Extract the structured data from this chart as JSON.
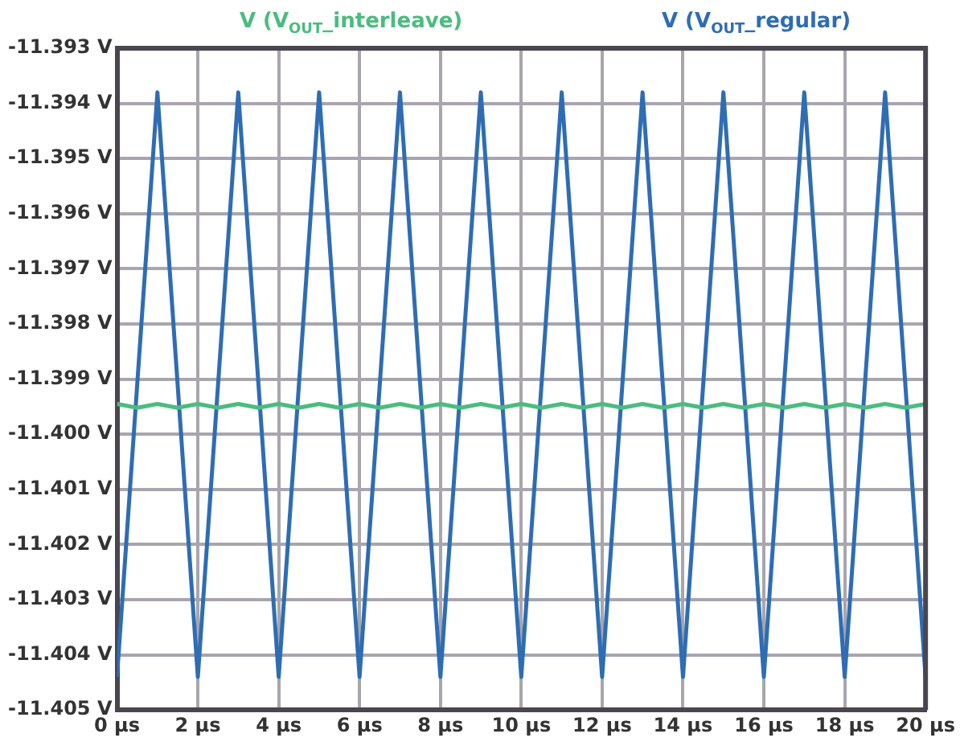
{
  "chart_data": {
    "type": "line",
    "legend": "top",
    "grid": true,
    "marker": "none",
    "line_style": "solid",
    "xlim": [
      0,
      20
    ],
    "xticks": [
      {
        "value": 0,
        "label": "0 µs"
      },
      {
        "value": 2,
        "label": "2 µs"
      },
      {
        "value": 4,
        "label": "4 µs"
      },
      {
        "value": 6,
        "label": "6 µs"
      },
      {
        "value": 8,
        "label": "8 µs"
      },
      {
        "value": 10,
        "label": "10 µs"
      },
      {
        "value": 12,
        "label": "12 µs"
      },
      {
        "value": 14,
        "label": "14 µs"
      },
      {
        "value": 16,
        "label": "16 µs"
      },
      {
        "value": 18,
        "label": "18 µs"
      },
      {
        "value": 20,
        "label": "20 µs"
      }
    ],
    "ylim": [
      -11.405,
      -11.393
    ],
    "yticks": [
      {
        "value": -11.405,
        "label": "-11.405 V"
      },
      {
        "value": -11.404,
        "label": "-11.404 V"
      },
      {
        "value": -11.403,
        "label": "-11.403 V"
      },
      {
        "value": -11.402,
        "label": "-11.402 V"
      },
      {
        "value": -11.401,
        "label": "-11.401 V"
      },
      {
        "value": -11.4,
        "label": "-11.400 V"
      },
      {
        "value": -11.399,
        "label": "-11.399 V"
      },
      {
        "value": -11.398,
        "label": "-11.398 V"
      },
      {
        "value": -11.397,
        "label": "-11.397 V"
      },
      {
        "value": -11.396,
        "label": "-11.396 V"
      },
      {
        "value": -11.395,
        "label": "-11.395 V"
      },
      {
        "value": -11.394,
        "label": "-11.394 V"
      },
      {
        "value": -11.393,
        "label": "-11.393 V"
      }
    ],
    "series": [
      {
        "name": "V (V$_{OUT}$_interleave)",
        "color": "#4cbb7f",
        "x": [
          0,
          0.5,
          1,
          1.5,
          2,
          2.5,
          3,
          3.5,
          4,
          4.5,
          5,
          5.5,
          6,
          6.5,
          7,
          7.5,
          8,
          8.5,
          9,
          9.5,
          10,
          10.5,
          11,
          11.5,
          12,
          12.5,
          13,
          13.5,
          14,
          14.5,
          15,
          15.5,
          16,
          16.5,
          17,
          17.5,
          18,
          18.5,
          19,
          19.5,
          20
        ],
        "values": [
          -11.39945,
          -11.39952,
          -11.39945,
          -11.39952,
          -11.39945,
          -11.39952,
          -11.39945,
          -11.39952,
          -11.39945,
          -11.39952,
          -11.39945,
          -11.39952,
          -11.39945,
          -11.39952,
          -11.39945,
          -11.39952,
          -11.39945,
          -11.39952,
          -11.39945,
          -11.39952,
          -11.39945,
          -11.39952,
          -11.39945,
          -11.39952,
          -11.39945,
          -11.39952,
          -11.39945,
          -11.39952,
          -11.39945,
          -11.39952,
          -11.39945,
          -11.39952,
          -11.39945,
          -11.39952,
          -11.39945,
          -11.39952,
          -11.39945,
          -11.39952,
          -11.39945,
          -11.39952,
          -11.39945
        ]
      },
      {
        "name": "V (V$_{OUT}$_regular)",
        "color": "#2e6db4",
        "x": [
          0,
          1,
          2,
          3,
          4,
          5,
          6,
          7,
          8,
          9,
          10,
          11,
          12,
          13,
          14,
          15,
          16,
          17,
          18,
          19,
          20
        ],
        "values": [
          -11.4044,
          -11.3938,
          -11.4044,
          -11.3938,
          -11.4044,
          -11.3938,
          -11.4044,
          -11.3938,
          -11.4044,
          -11.3938,
          -11.4044,
          -11.3938,
          -11.4044,
          -11.3938,
          -11.4044,
          -11.3938,
          -11.4044,
          -11.3938,
          -11.4044,
          -11.3938,
          -11.4044
        ]
      }
    ]
  }
}
